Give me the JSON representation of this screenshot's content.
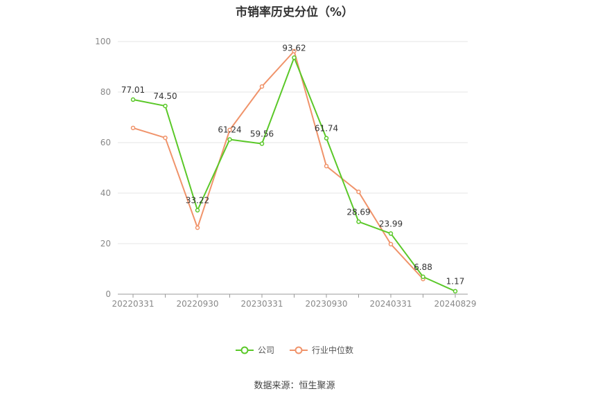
{
  "chart_data": {
    "type": "line",
    "title": "市销率历史分位（%）",
    "x_tick_labels": [
      "20220331",
      "20220930",
      "20230331",
      "20230930",
      "20240331",
      "20240829"
    ],
    "ylim": [
      0,
      100
    ],
    "y_ticks": [
      0,
      20,
      40,
      60,
      80,
      100
    ],
    "grid": true,
    "legend_position": "bottom",
    "series": [
      {
        "name": "公司",
        "color": "#5ac828",
        "values": [
          77.01,
          74.5,
          33.22,
          61.24,
          59.56,
          93.62,
          61.74,
          28.69,
          23.99,
          6.88,
          1.17
        ],
        "labels": [
          "77.01",
          "74.50",
          "33.22",
          "61.24",
          "59.56",
          "93.62",
          "61.74",
          "28.69",
          "23.99",
          "6.88",
          "1.17"
        ]
      },
      {
        "name": "行业中位数",
        "color": "#f0936a",
        "values": [
          65.8,
          61.9,
          26.3,
          65.0,
          82.2,
          96.2,
          50.7,
          40.5,
          19.8,
          6.0,
          null
        ]
      }
    ]
  },
  "source": "数据来源：恒生聚源"
}
